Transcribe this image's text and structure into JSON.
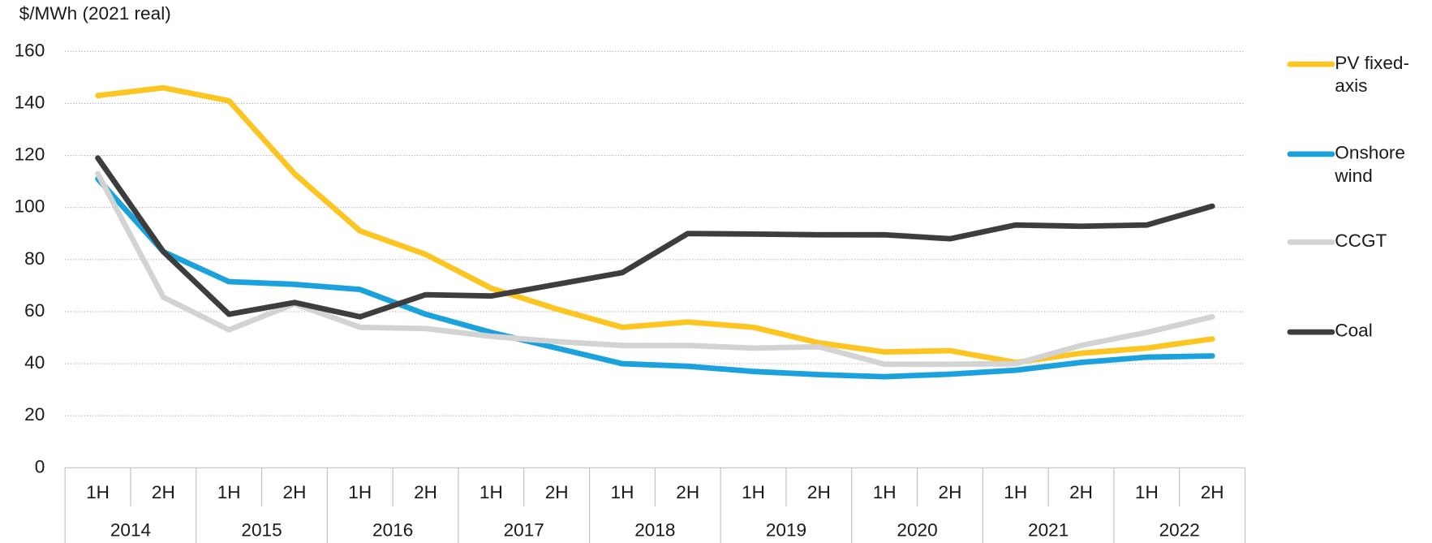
{
  "chart_data": {
    "type": "line",
    "y_label": "$/MWh (2021 real)",
    "categories": [
      "1H",
      "2H",
      "1H",
      "2H",
      "1H",
      "2H",
      "1H",
      "2H",
      "1H",
      "2H",
      "1H",
      "2H",
      "1H",
      "2H",
      "1H",
      "2H",
      "1H",
      "2H"
    ],
    "groups": [
      "2014",
      "2015",
      "2016",
      "2017",
      "2018",
      "2019",
      "2020",
      "2021",
      "2022"
    ],
    "series": [
      {
        "name": "PV fixed-axis",
        "color": "#fcc521",
        "values": [
          143,
          146,
          141,
          113,
          91,
          82,
          69,
          61,
          54,
          56,
          54,
          48,
          44.5,
          45,
          40.5,
          44,
          46,
          49.5
        ]
      },
      {
        "name": "Onshore wind",
        "color": "#1ba1dc",
        "values": [
          111,
          83,
          71.5,
          70.5,
          68.5,
          59,
          52,
          46,
          40,
          39,
          37,
          35.8,
          35,
          36,
          37.5,
          40.5,
          42.5,
          43
        ]
      },
      {
        "name": "CCGT",
        "color": "#d3d3d3",
        "values": [
          113,
          65.5,
          53,
          63,
          54,
          53.5,
          50.5,
          48.5,
          47,
          47,
          46,
          46.5,
          39.8,
          39.8,
          40,
          47,
          52,
          58
        ]
      },
      {
        "name": "Coal",
        "color": "#3d3d3d",
        "values": [
          119,
          83,
          59,
          63.5,
          58,
          66.5,
          66,
          70.5,
          75,
          90,
          89.8,
          89.5,
          89.5,
          88,
          93.3,
          92.8,
          93.3,
          100.5
        ]
      }
    ],
    "ylim": [
      0,
      160
    ],
    "yticks": [
      0,
      20,
      40,
      60,
      80,
      100,
      120,
      140,
      160
    ],
    "grid": true,
    "legend": "right"
  }
}
